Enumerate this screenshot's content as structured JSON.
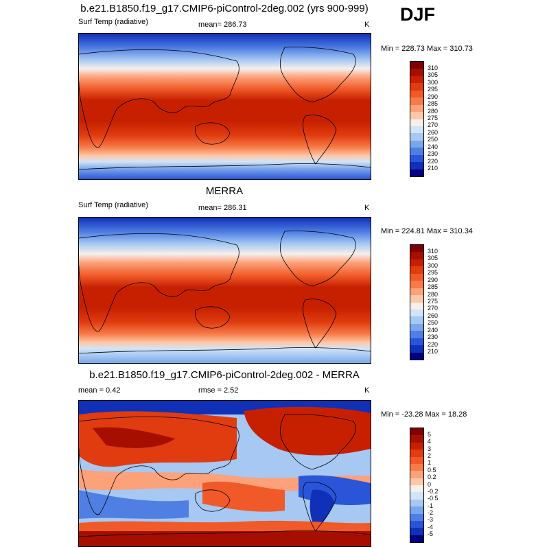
{
  "season": "DJF",
  "panels": [
    {
      "title": "b.e21.B1850.f19_g17.CMIP6-piControl-2deg.002 (yrs 900-999)",
      "left_label": "Surf Temp (radiative)",
      "center_label": "mean= 286.73",
      "units": "K",
      "minmax": "Min = 228.73 Max = 310.73",
      "colorbar_labels": [
        "310",
        "305",
        "300",
        "295",
        "290",
        "285",
        "280",
        "275",
        "270",
        "260",
        "250",
        "240",
        "230",
        "220",
        "210"
      ],
      "colors": [
        "#7f0000",
        "#a60f00",
        "#c62000",
        "#e03c10",
        "#f05a28",
        "#f77b48",
        "#fca17a",
        "#fdc8a8",
        "#f5f0ec",
        "#d2e4f7",
        "#a6c8f2",
        "#7aa6eb",
        "#4f7fe3",
        "#2a55d8",
        "#1030b8",
        "#000080"
      ]
    },
    {
      "title": "MERRA",
      "left_label": "Surf Temp (radiative)",
      "center_label": "mean= 286.31",
      "units": "K",
      "minmax": "Min = 224.81 Max = 310.34",
      "colorbar_labels": [
        "310",
        "305",
        "300",
        "295",
        "290",
        "285",
        "280",
        "275",
        "270",
        "260",
        "250",
        "240",
        "230",
        "220",
        "210"
      ],
      "colors": [
        "#7f0000",
        "#a60f00",
        "#c62000",
        "#e03c10",
        "#f05a28",
        "#f77b48",
        "#fca17a",
        "#fdc8a8",
        "#f5f0ec",
        "#d2e4f7",
        "#a6c8f2",
        "#7aa6eb",
        "#4f7fe3",
        "#2a55d8",
        "#1030b8",
        "#000080"
      ]
    },
    {
      "title": "b.e21.B1850.f19_g17.CMIP6-piControl-2deg.002 - MERRA",
      "left_label": "mean =   0.42",
      "center_label": "rmse =   2.52",
      "units": "K",
      "minmax": "Min = -23.28 Max =  18.28",
      "colorbar_labels": [
        "5",
        "4",
        "3",
        "2",
        "1",
        "0.5",
        "0.2",
        "0",
        "-0.2",
        "-0.5",
        "-1",
        "-2",
        "-3",
        "-4",
        "-5"
      ],
      "colors": [
        "#7f0000",
        "#a60f00",
        "#c62000",
        "#e03c10",
        "#f05a28",
        "#f77b48",
        "#fca17a",
        "#fdc8a8",
        "#f5f0ec",
        "#d2e4f7",
        "#a6c8f2",
        "#7aa6eb",
        "#4f7fe3",
        "#2a55d8",
        "#1030b8",
        "#000080"
      ]
    }
  ]
}
